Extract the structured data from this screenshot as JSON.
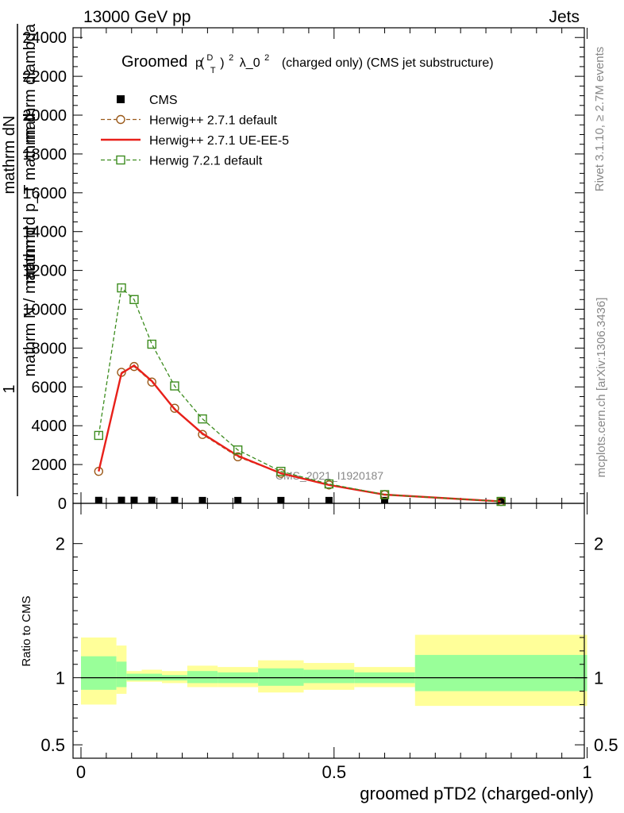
{
  "header": {
    "left": "13000 GeV pp",
    "right": "Jets"
  },
  "side_labels": {
    "rivet": "Rivet 3.1.10, ≥ 2.7M events",
    "mcplots": "mcplots.cern.ch [arXiv:1306.3436]"
  },
  "chart_data": [
    {
      "type": "line",
      "title": "Groomed",
      "title_math": {
        "p": "p",
        "sup": "D",
        "sub": "T",
        "pow": "2",
        "lambda": "λ_0",
        "lambda_pow": "2"
      },
      "title_rest": "(charged only) (CMS jet substructure)",
      "watermark": "CMS_2021_I1920187",
      "ylabel_parts": [
        "1",
        "mathrm N",
        "mathrm d",
        "mathrm dN",
        "mathrm d p_T mathrm d",
        "mathrm dlambda"
      ],
      "xlim": [
        0,
        1
      ],
      "ylim": [
        0,
        24500
      ],
      "yticks": [
        0,
        2000,
        4000,
        6000,
        8000,
        10000,
        12000,
        14000,
        16000,
        18000,
        20000,
        22000,
        24000
      ],
      "ytick_labels": [
        "0",
        "2000",
        "4000",
        "6000",
        "8000",
        "10000",
        "12000",
        "14000",
        "16000",
        "18000",
        "20000",
        "22000",
        "24000"
      ],
      "legend_placement": "top-left",
      "x": [
        0.035,
        0.08,
        0.105,
        0.14,
        0.185,
        0.24,
        0.31,
        0.395,
        0.49,
        0.6,
        0.83
      ],
      "series": [
        {
          "name": "CMS",
          "color": "#000000",
          "marker": "filled-square",
          "values": [
            10,
            15,
            15,
            15,
            10,
            5,
            5,
            5,
            5,
            5,
            2
          ]
        },
        {
          "name": "Herwig++ 2.7.1 default",
          "color": "#9b5a1a",
          "marker": "open-circle",
          "dash": true,
          "values": [
            1650,
            6750,
            7050,
            6250,
            4900,
            3550,
            2400,
            1550,
            950,
            450,
            100
          ]
        },
        {
          "name": "Herwig++ 2.7.1 UE-EE-5",
          "color": "#e8201a",
          "marker": "none",
          "dash": false,
          "values": [
            1650,
            6700,
            7100,
            6300,
            4850,
            3600,
            2450,
            1550,
            950,
            450,
            100
          ]
        },
        {
          "name": "Herwig 7.2.1 default",
          "color": "#3c8c1e",
          "marker": "open-square",
          "dash": true,
          "values": [
            3500,
            11100,
            10500,
            8200,
            6050,
            4350,
            2750,
            1650,
            1000,
            450,
            100
          ]
        }
      ]
    },
    {
      "type": "area",
      "ylabel": "Ratio to CMS",
      "xlabel": "groomed pTD2 (charged-only)",
      "xlim": [
        0,
        1
      ],
      "ylim": [
        0.4,
        2.3
      ],
      "xticks": [
        0,
        0.5,
        1
      ],
      "xtick_labels": [
        "0",
        "0.5",
        "1"
      ],
      "yticks": [
        0.5,
        1,
        2
      ],
      "ytick_labels": [
        "0.5",
        "1",
        "2"
      ],
      "reference": 1,
      "bins": [
        {
          "x0": 0.0,
          "x1": 0.07,
          "yellow": [
            0.8,
            1.3
          ],
          "green": [
            0.91,
            1.16
          ]
        },
        {
          "x0": 0.07,
          "x1": 0.09,
          "yellow": [
            0.88,
            1.24
          ],
          "green": [
            0.93,
            1.12
          ]
        },
        {
          "x0": 0.09,
          "x1": 0.12,
          "yellow": [
            0.97,
            1.05
          ],
          "green": [
            0.98,
            1.03
          ]
        },
        {
          "x0": 0.12,
          "x1": 0.16,
          "yellow": [
            0.97,
            1.06
          ],
          "green": [
            0.98,
            1.03
          ]
        },
        {
          "x0": 0.16,
          "x1": 0.21,
          "yellow": [
            0.96,
            1.05
          ],
          "green": [
            0.98,
            1.02
          ]
        },
        {
          "x0": 0.21,
          "x1": 0.27,
          "yellow": [
            0.93,
            1.09
          ],
          "green": [
            0.96,
            1.05
          ]
        },
        {
          "x0": 0.27,
          "x1": 0.35,
          "yellow": [
            0.93,
            1.08
          ],
          "green": [
            0.96,
            1.04
          ]
        },
        {
          "x0": 0.35,
          "x1": 0.44,
          "yellow": [
            0.89,
            1.13
          ],
          "green": [
            0.94,
            1.07
          ]
        },
        {
          "x0": 0.44,
          "x1": 0.54,
          "yellow": [
            0.91,
            1.11
          ],
          "green": [
            0.96,
            1.06
          ]
        },
        {
          "x0": 0.54,
          "x1": 0.66,
          "yellow": [
            0.93,
            1.08
          ],
          "green": [
            0.96,
            1.04
          ]
        },
        {
          "x0": 0.66,
          "x1": 1.0,
          "yellow": [
            0.79,
            1.32
          ],
          "green": [
            0.9,
            1.17
          ]
        }
      ]
    }
  ]
}
